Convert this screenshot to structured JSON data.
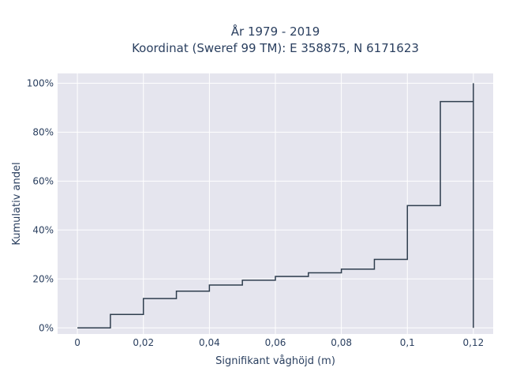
{
  "chart_data": {
    "type": "line",
    "line_shape": "step",
    "title_line1": "År 1979 - 2019",
    "title_line2": "Koordinat (Sweref 99 TM): E 358875, N 6171623",
    "xlabel": "Signifikant våghöjd (m)",
    "ylabel": "Kumulativ andel",
    "x_ticks": [
      0,
      0.02,
      0.04,
      0.06,
      0.08,
      0.1,
      0.12
    ],
    "x_tick_labels": [
      "0",
      "0,02",
      "0,04",
      "0,06",
      "0,08",
      "0,1",
      "0,12"
    ],
    "y_ticks": [
      0,
      20,
      40,
      60,
      80,
      100
    ],
    "y_tick_labels": [
      "0%",
      "20%",
      "40%",
      "60%",
      "80%",
      "100%"
    ],
    "xlim": [
      -0.006,
      0.126
    ],
    "ylim": [
      -2.5,
      104
    ],
    "x": [
      0,
      0.01,
      0.02,
      0.03,
      0.04,
      0.05,
      0.06,
      0.07,
      0.08,
      0.09,
      0.1,
      0.11,
      0.12,
      0.12
    ],
    "values": [
      0,
      5.5,
      12,
      15,
      17.5,
      19.5,
      21,
      22.5,
      24,
      28,
      50,
      92.5,
      100,
      0
    ],
    "colors": {
      "line": "#2f3e4e",
      "plot_bg": "#e5e5ee",
      "grid": "#ffffff",
      "text": "#2a3f5f"
    },
    "grid": true
  }
}
